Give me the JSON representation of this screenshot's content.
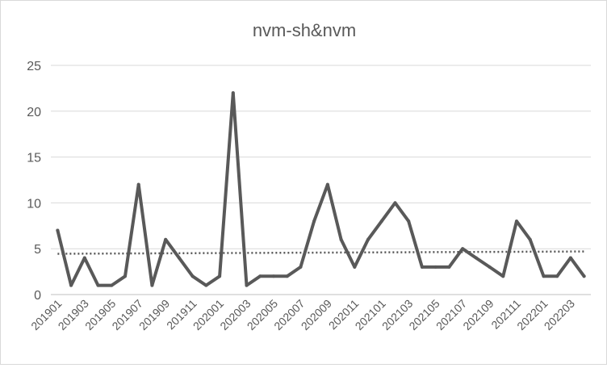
{
  "chart_data": {
    "type": "line",
    "title": "nvm-sh&nvm",
    "xlabel": "",
    "ylabel": "",
    "ylim": [
      0,
      25
    ],
    "yticks": [
      0,
      5,
      10,
      15,
      20,
      25
    ],
    "grid": true,
    "legend": "none",
    "categories": [
      "201901",
      "201902",
      "201903",
      "201904",
      "201905",
      "201906",
      "201907",
      "201908",
      "201909",
      "201910",
      "201911",
      "201912",
      "202001",
      "202002",
      "202003",
      "202004",
      "202005",
      "202006",
      "202007",
      "202008",
      "202009",
      "202010",
      "202011",
      "202012",
      "202101",
      "202102",
      "202103",
      "202104",
      "202105",
      "202106",
      "202107",
      "202108",
      "202109",
      "202110",
      "202111",
      "202112",
      "202201",
      "202202",
      "202203",
      "202204"
    ],
    "tick_labels": [
      "201901",
      "201903",
      "201905",
      "201907",
      "201909",
      "201911",
      "202001",
      "202003",
      "202005",
      "202007",
      "202009",
      "202011",
      "202101",
      "202103",
      "202105",
      "202107",
      "202109",
      "202111",
      "202201",
      "202203"
    ],
    "series": [
      {
        "name": "nvm-sh&nvm",
        "values": [
          7,
          1,
          4,
          1,
          1,
          2,
          12,
          1,
          6,
          4,
          2,
          1,
          2,
          22,
          1,
          2,
          2,
          2,
          3,
          8,
          12,
          6,
          3,
          6,
          8,
          10,
          8,
          3,
          3,
          3,
          5,
          4,
          3,
          2,
          8,
          6,
          2,
          2,
          4,
          2
        ],
        "color": "#595959"
      }
    ],
    "trendline": {
      "type": "linear",
      "start": 4.45,
      "end": 4.7,
      "color": "#595959"
    }
  }
}
